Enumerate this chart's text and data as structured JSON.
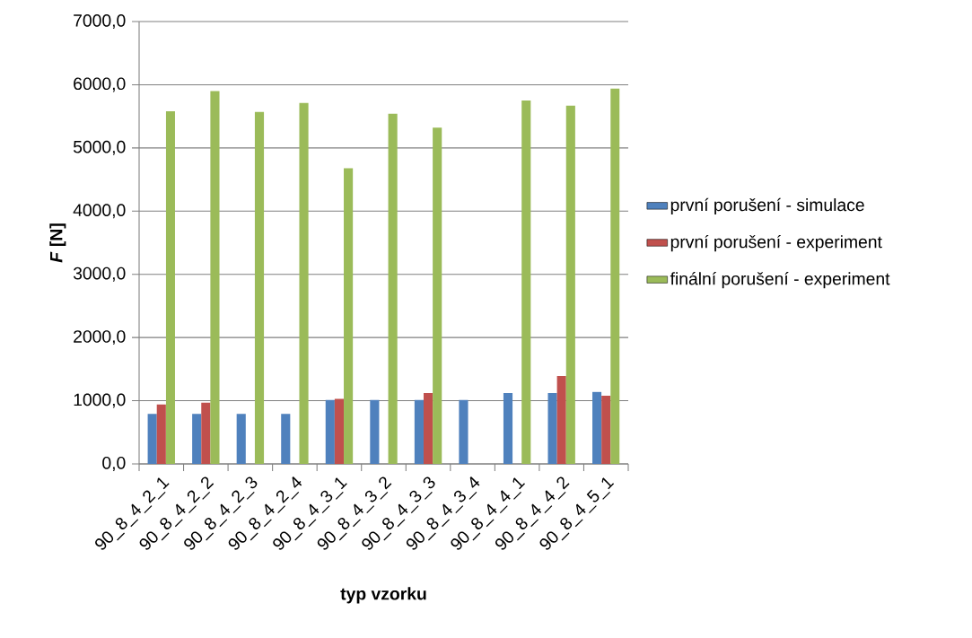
{
  "chart_data": {
    "type": "bar",
    "xlabel": "typ vzorku",
    "ylabel": "*F* [N]",
    "categories": [
      "90_8_4_2_1",
      "90_8_4_2_2",
      "90_8_4_2_3",
      "90_8_4_2_4",
      "90_8_4_3_1",
      "90_8_4_3_2",
      "90_8_4_3_3",
      "90_8_4_3_4",
      "90_8_4_4_1",
      "90_8_4_4_2",
      "90_8_4_5_1"
    ],
    "series": [
      {
        "name": "první porušení - simulace",
        "color": "#4f81bd",
        "values": [
          790,
          790,
          790,
          790,
          1010,
          1010,
          1010,
          1010,
          1120,
          1120,
          1140
        ]
      },
      {
        "name": "první porušení - experiment",
        "color": "#c0504d",
        "values": [
          940,
          970,
          null,
          null,
          1030,
          null,
          1120,
          null,
          null,
          1390,
          1080
        ]
      },
      {
        "name": "finální porušení - experiment",
        "color": "#9bbb59",
        "values": [
          5580,
          5900,
          5570,
          5710,
          4680,
          5540,
          5320,
          null,
          5750,
          5670,
          5940
        ]
      }
    ],
    "ylim": [
      0,
      7000
    ],
    "yticks": [
      {
        "value": 0,
        "label": "0,0"
      },
      {
        "value": 1000,
        "label": "1000,0"
      },
      {
        "value": 2000,
        "label": "2000,0"
      },
      {
        "value": 3000,
        "label": "3000,0"
      },
      {
        "value": 4000,
        "label": "4000,0"
      },
      {
        "value": 5000,
        "label": "5000,0"
      },
      {
        "value": 6000,
        "label": "6000,0"
      },
      {
        "value": 7000,
        "label": "7000,0"
      }
    ],
    "grid": "y",
    "legend": "right"
  }
}
